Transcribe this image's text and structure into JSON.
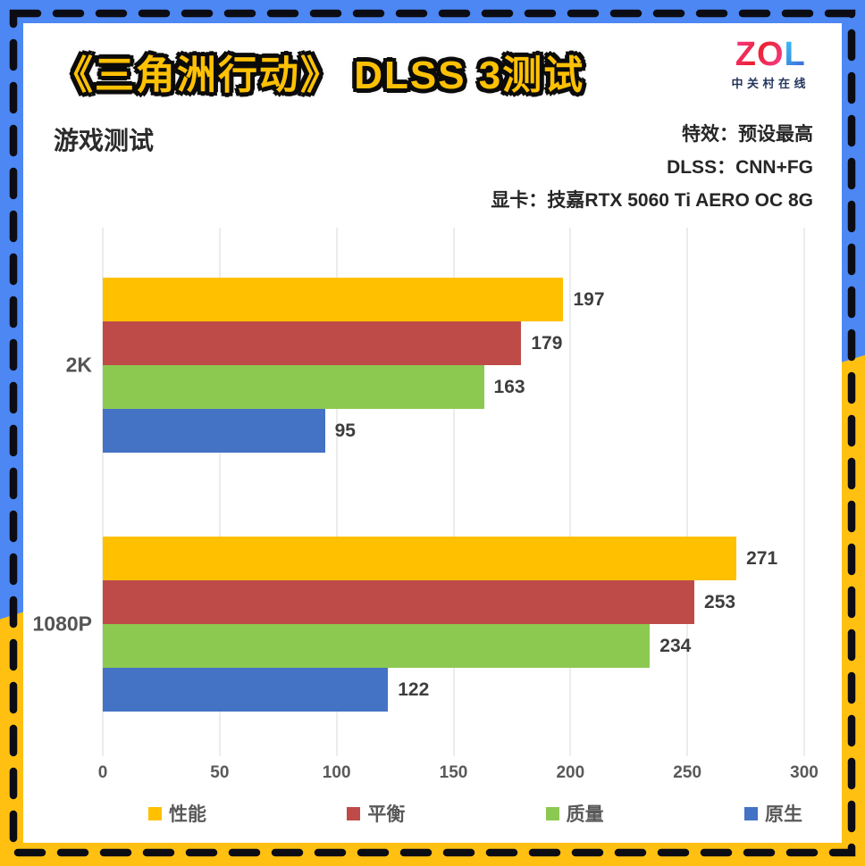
{
  "header": {
    "title": "《三角洲行动》 DLSS 3测试",
    "logo": {
      "letters": [
        "Z",
        "O",
        "L"
      ],
      "subtext": "中关村在线"
    }
  },
  "meta": {
    "info_lines": [
      "特效：预设最高",
      "DLSS：CNN+FG",
      "显卡：技嘉RTX 5060 Ti AERO OC 8G"
    ]
  },
  "palette": {
    "frame_blue": "#4C87F3",
    "frame_yellow": "#FFC012",
    "title_yellow": "#FFC103",
    "dash_black": "#0C0C14",
    "gridline_gray": "#D9D9D9"
  },
  "chart_data": {
    "type": "bar",
    "orientation": "horizontal",
    "title": "游戏测试",
    "xlabel": "",
    "ylabel": "",
    "xlim": [
      0,
      300
    ],
    "xticks": [
      0,
      50,
      100,
      150,
      200,
      250,
      300
    ],
    "grid": "vertical",
    "legend_position": "bottom",
    "categories": [
      "2K",
      "1080P"
    ],
    "series": [
      {
        "name": "性能",
        "color": "#FFC000",
        "values": [
          197,
          271
        ]
      },
      {
        "name": "平衡",
        "color": "#BE4B48",
        "values": [
          179,
          253
        ]
      },
      {
        "name": "质量",
        "color": "#8CC951",
        "values": [
          163,
          234
        ]
      },
      {
        "name": "原生",
        "color": "#4472C4",
        "values": [
          95,
          122
        ]
      }
    ]
  }
}
